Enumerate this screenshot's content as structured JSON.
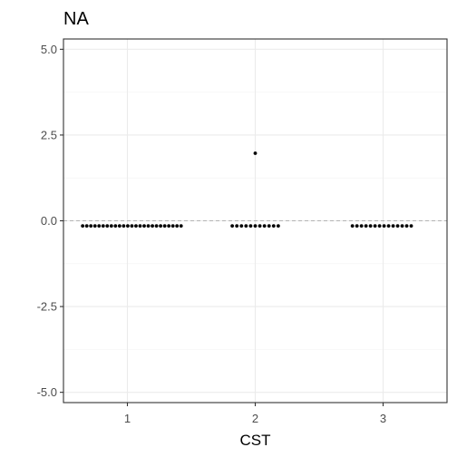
{
  "chart_data": {
    "type": "scatter",
    "title": "NA",
    "xlabel": "CST",
    "ylabel": "",
    "x_categories": [
      "1",
      "2",
      "3"
    ],
    "ylim": [
      -5.3,
      5.3
    ],
    "y_ticks": [
      5.0,
      2.5,
      0.0,
      -2.5,
      -5.0
    ],
    "y_tick_labels": [
      "5.0",
      "2.5",
      "0.0",
      "-2.5",
      "-5.0"
    ],
    "reference_line": {
      "y": 0.0,
      "style": "dashed",
      "color": "#b3b3b3"
    },
    "grid": true,
    "point_color": "#000000",
    "groups": [
      {
        "category": "1",
        "dot_count": 25,
        "dot_value": -0.15,
        "x_spread": [
          0.65,
          1.42
        ],
        "outliers": []
      },
      {
        "category": "2",
        "dot_count": 11,
        "dot_value": -0.15,
        "x_spread": [
          1.82,
          2.18
        ],
        "outliers": [
          {
            "x": 2.0,
            "y": 1.97
          }
        ]
      },
      {
        "category": "3",
        "dot_count": 14,
        "dot_value": -0.15,
        "x_spread": [
          2.76,
          3.22
        ],
        "outliers": []
      }
    ]
  }
}
